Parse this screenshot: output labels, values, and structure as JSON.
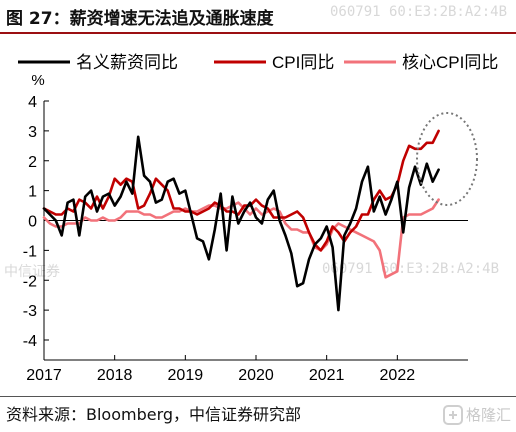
{
  "title": "图 27：薪资增速无法追及通胀速度",
  "source": "资料来源：Bloomberg，中信证券研究部",
  "watermark": {
    "texts": [
      "中信证券",
      "060791   60:E3:2B:A2:4B"
    ],
    "logo_text": "格隆汇"
  },
  "chart_data": {
    "type": "line",
    "ylabel": "%",
    "ylim": [
      -4,
      4
    ],
    "yticks": [
      -4,
      -3,
      -2,
      -1,
      0,
      1,
      2,
      3,
      4
    ],
    "xticks": [
      "2017",
      "2018",
      "2019",
      "2020",
      "2021",
      "2022"
    ],
    "x_start": "2017-01",
    "x_end": "2022-08",
    "legend_position": "top",
    "colors": {
      "nominal": "#000000",
      "cpi": "#c00000",
      "core": "#f2727a",
      "highlight": "#777777"
    },
    "series": [
      {
        "name": "名义薪资同比",
        "values": [
          0.4,
          0.2,
          0.0,
          -0.5,
          0.6,
          0.7,
          -0.5,
          0.8,
          1.0,
          0.3,
          0.8,
          0.9,
          0.5,
          0.8,
          1.3,
          0.9,
          2.8,
          1.5,
          1.3,
          0.6,
          0.7,
          1.3,
          1.4,
          0.9,
          1.0,
          0.2,
          -0.6,
          -0.7,
          -1.3,
          -0.3,
          0.9,
          -1.0,
          0.8,
          -0.1,
          0.3,
          0.6,
          0.1,
          -0.1,
          0.7,
          1.0,
          0.0,
          -0.5,
          -1.1,
          -2.2,
          -2.1,
          -1.3,
          -0.8,
          -0.6,
          -0.2,
          -0.9,
          -3.0,
          -0.5,
          -0.1,
          0.4,
          1.3,
          1.8,
          0.3,
          0.8,
          0.2,
          0.7,
          1.3,
          -0.4,
          1.1,
          1.8,
          1.2,
          1.9,
          1.3,
          1.7
        ]
      },
      {
        "name": "CPI同比",
        "values": [
          0.4,
          0.3,
          0.2,
          0.2,
          0.4,
          0.3,
          0.7,
          0.6,
          0.4,
          0.8,
          0.4,
          0.8,
          1.4,
          1.2,
          1.4,
          1.3,
          0.4,
          0.5,
          0.9,
          1.4,
          1.2,
          1.0,
          0.4,
          0.4,
          0.3,
          0.3,
          0.2,
          0.3,
          0.4,
          0.6,
          0.5,
          0.3,
          0.3,
          0.2,
          0.5,
          0.5,
          0.7,
          0.5,
          0.4,
          0.1,
          0.1,
          0.1,
          0.2,
          0.3,
          0.1,
          -0.4,
          -0.8,
          -1.0,
          -0.7,
          -0.2,
          -0.4,
          -0.7,
          -0.4,
          -0.2,
          0.2,
          0.2,
          0.7,
          1.0,
          0.7,
          0.8,
          1.2,
          2.0,
          2.5,
          2.4,
          2.4,
          2.6,
          2.6,
          3.0
        ]
      },
      {
        "name": "核心CPI同比",
        "values": [
          0.1,
          -0.1,
          -0.2,
          -0.2,
          -0.1,
          -0.1,
          -0.1,
          0.1,
          0.0,
          0.0,
          0.1,
          0.0,
          0.0,
          0.1,
          0.3,
          0.3,
          0.3,
          0.2,
          0.2,
          0.1,
          0.1,
          0.2,
          0.3,
          0.3,
          0.4,
          0.3,
          0.3,
          0.4,
          0.5,
          0.5,
          0.4,
          0.4,
          0.5,
          0.6,
          0.4,
          0.2,
          0.4,
          0.2,
          0.3,
          0.4,
          0.3,
          -0.1,
          -0.3,
          -0.3,
          -0.4,
          -0.4,
          -0.9,
          -1.0,
          -0.8,
          -0.3,
          -0.1,
          -0.2,
          -0.3,
          -0.4,
          -0.5,
          -0.6,
          -0.7,
          -1.0,
          -1.9,
          -1.8,
          -1.7,
          0.1,
          0.2,
          0.2,
          0.2,
          0.3,
          0.4,
          0.7
        ]
      }
    ]
  }
}
